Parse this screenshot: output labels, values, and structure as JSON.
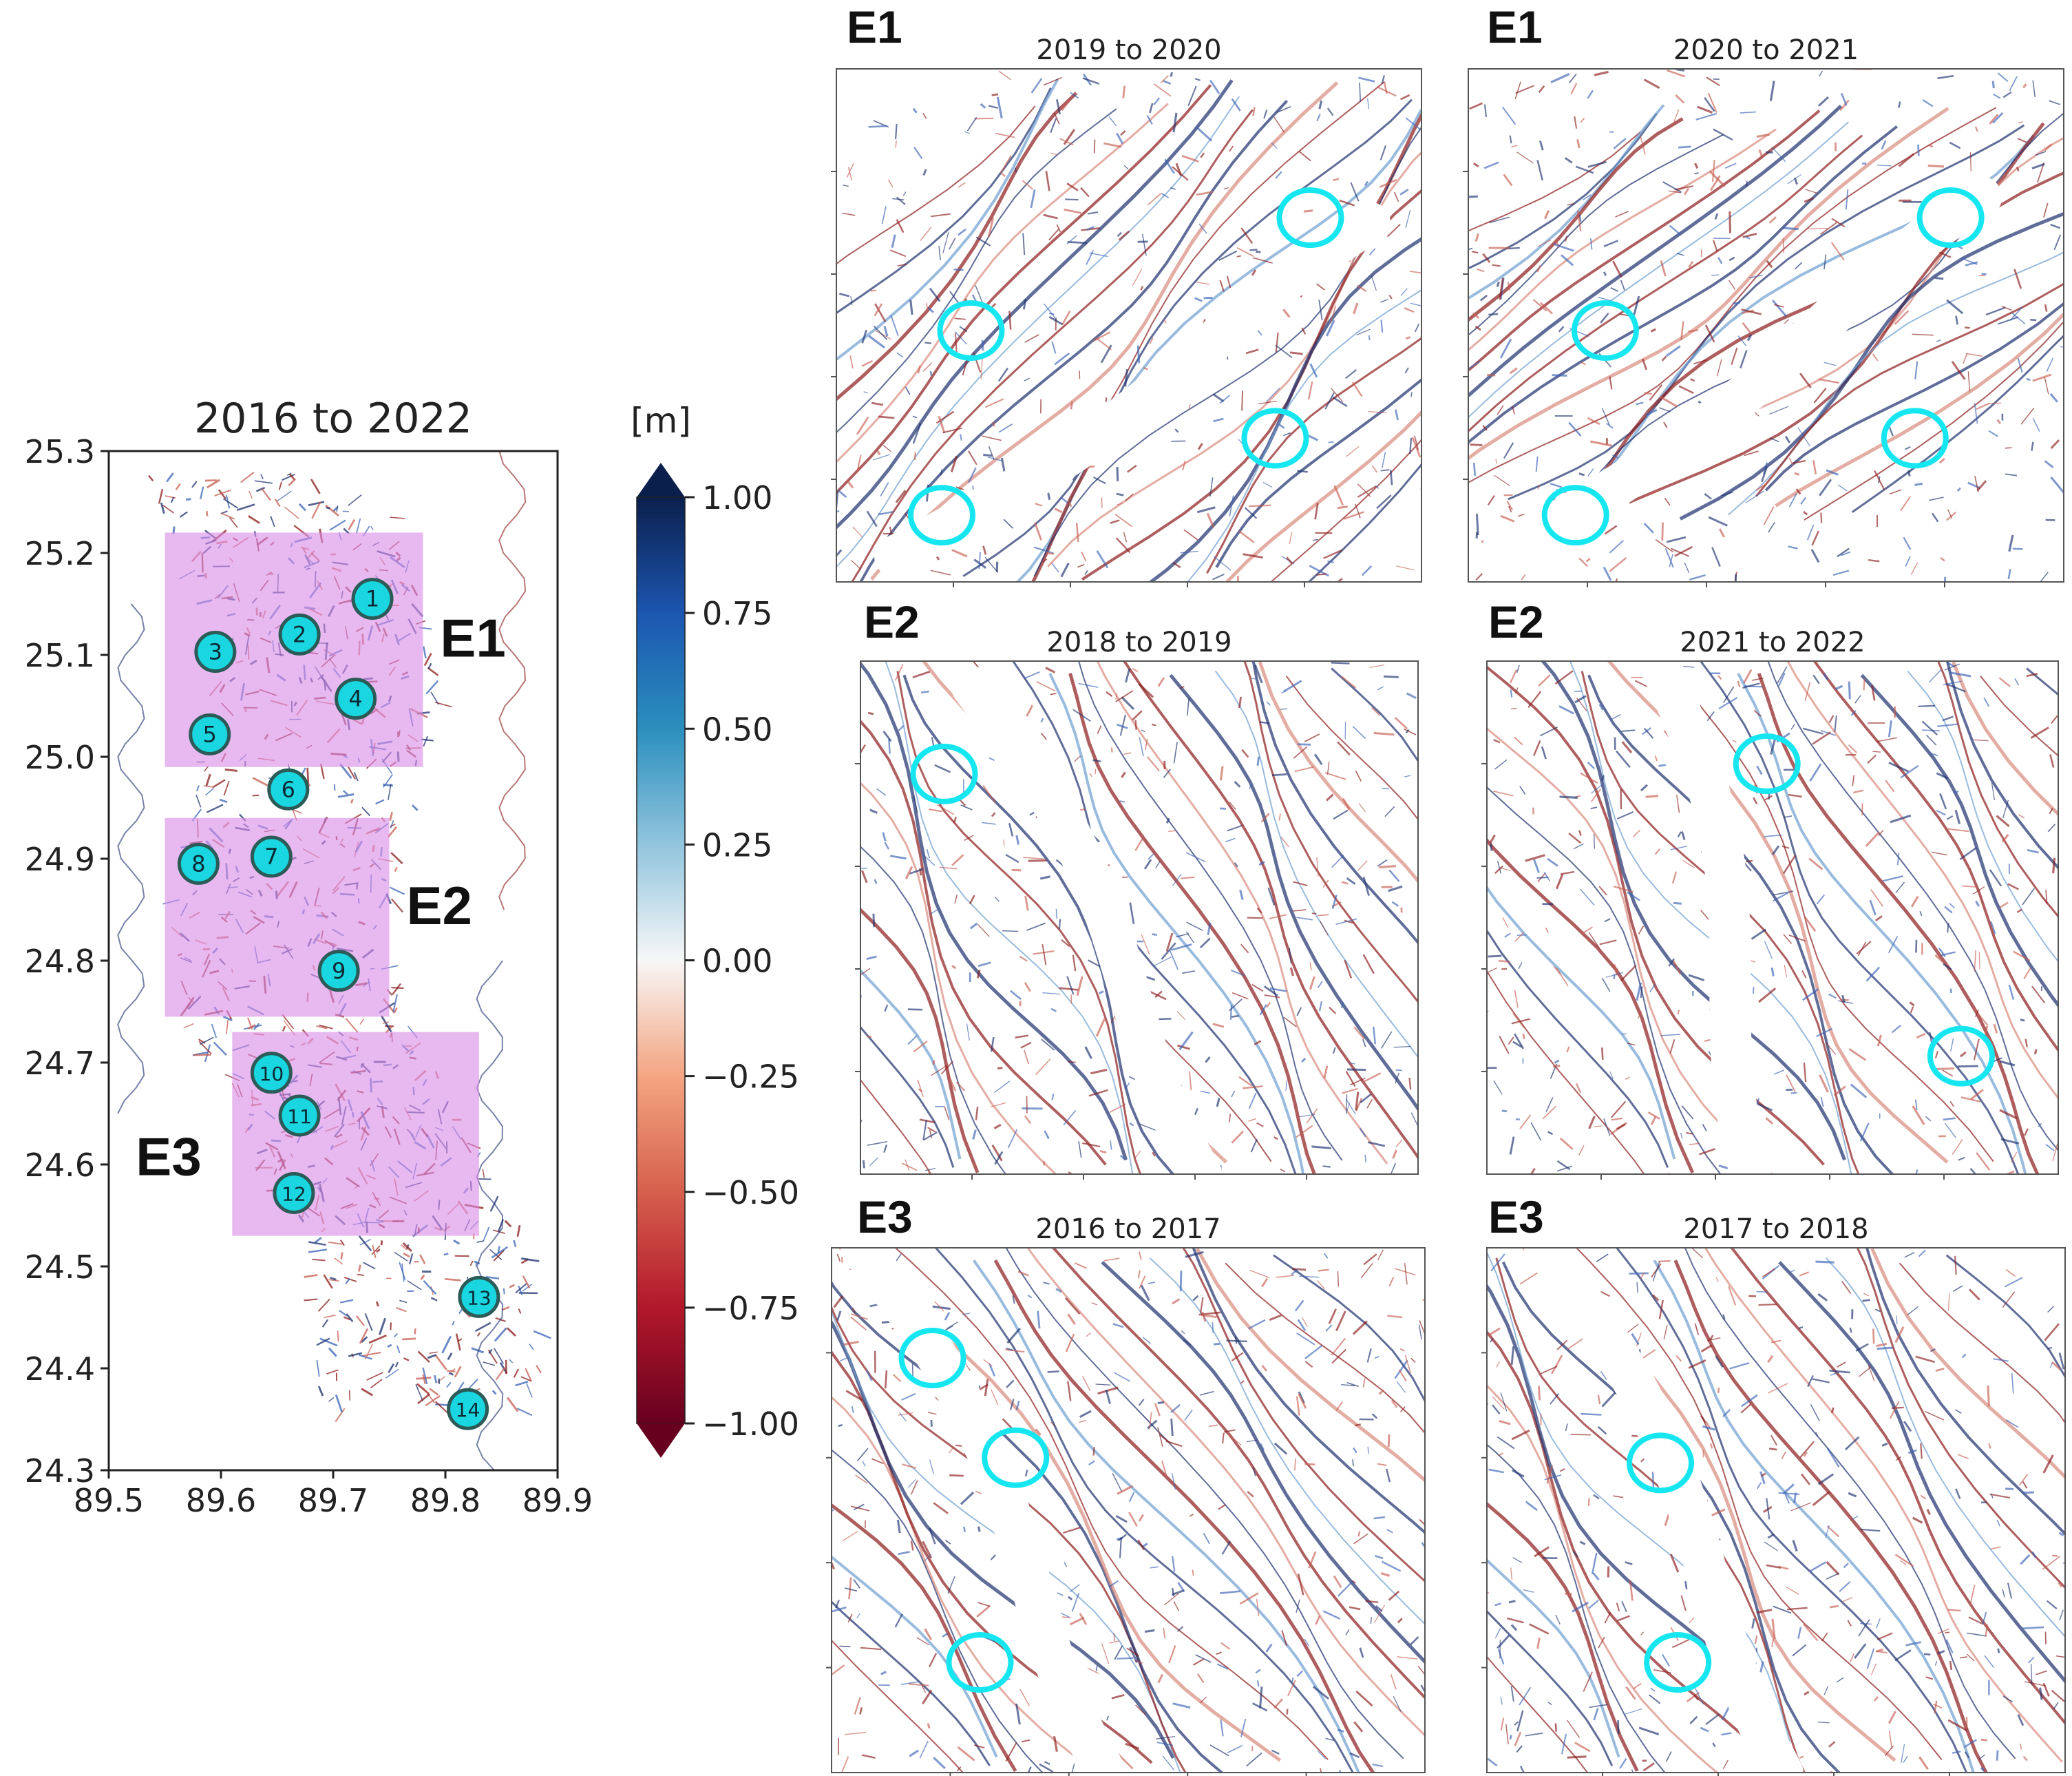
{
  "overview": {
    "title": "2016 to 2022",
    "y_ticks": [
      "25.3",
      "25.2",
      "25.1",
      "25.0",
      "24.9",
      "24.8",
      "24.7",
      "24.6",
      "24.5",
      "24.4",
      "24.3"
    ],
    "x_ticks": [
      "89.5",
      "89.6",
      "89.7",
      "89.8",
      "89.9"
    ],
    "extent": {
      "lon": [
        89.5,
        89.9
      ],
      "lat": [
        24.3,
        25.3
      ]
    },
    "regions": [
      {
        "label": "E1",
        "lon": [
          89.55,
          89.78
        ],
        "lat": [
          24.99,
          25.22
        ]
      },
      {
        "label": "E2",
        "lon": [
          89.55,
          89.75
        ],
        "lat": [
          24.745,
          24.94
        ]
      },
      {
        "label": "E3",
        "lon": [
          89.61,
          89.83
        ],
        "lat": [
          24.53,
          24.73
        ]
      }
    ],
    "region_color": "#d88be6",
    "markers": [
      {
        "n": "1",
        "lon": 89.735,
        "lat": 25.155
      },
      {
        "n": "2",
        "lon": 89.67,
        "lat": 25.12
      },
      {
        "n": "3",
        "lon": 89.595,
        "lat": 25.103
      },
      {
        "n": "4",
        "lon": 89.72,
        "lat": 25.057
      },
      {
        "n": "5",
        "lon": 89.59,
        "lat": 25.022
      },
      {
        "n": "6",
        "lon": 89.66,
        "lat": 24.968
      },
      {
        "n": "7",
        "lon": 89.645,
        "lat": 24.902
      },
      {
        "n": "8",
        "lon": 89.58,
        "lat": 24.895
      },
      {
        "n": "9",
        "lon": 89.705,
        "lat": 24.79
      },
      {
        "n": "10",
        "lon": 89.645,
        "lat": 24.69
      },
      {
        "n": "11",
        "lon": 89.67,
        "lat": 24.648
      },
      {
        "n": "12",
        "lon": 89.665,
        "lat": 24.572
      },
      {
        "n": "13",
        "lon": 89.83,
        "lat": 24.47
      },
      {
        "n": "14",
        "lon": 89.82,
        "lat": 24.36
      }
    ],
    "marker_color": "#19d6e0"
  },
  "colorbar": {
    "unit": "[m]",
    "ticks": [
      "1.00",
      "0.75",
      "0.50",
      "0.25",
      "0.00",
      "−0.25",
      "−0.50",
      "−0.75",
      "−1.00"
    ],
    "range": [
      -1.0,
      1.0
    ],
    "colors": [
      "#67001f",
      "#b2182b",
      "#d6604d",
      "#f4a582",
      "#f7f7f7",
      "#92c5de",
      "#2a8fbd",
      "#1c56b0",
      "#0b1f4d"
    ],
    "extend": "both"
  },
  "panels": [
    {
      "region": "E1",
      "title": "2019 to 2020",
      "circles": [
        [
          0.81,
          0.29
        ],
        [
          0.23,
          0.51
        ],
        [
          0.75,
          0.72
        ],
        [
          0.18,
          0.87
        ]
      ]
    },
    {
      "region": "E1",
      "title": "2020 to 2021",
      "circles": [
        [
          0.81,
          0.29
        ],
        [
          0.23,
          0.51
        ],
        [
          0.75,
          0.72
        ],
        [
          0.18,
          0.87
        ]
      ]
    },
    {
      "region": "E2",
      "title": "2018 to 2019",
      "circles": [
        [
          0.15,
          0.22
        ]
      ]
    },
    {
      "region": "E2",
      "title": "2021 to 2022",
      "circles": [
        [
          0.49,
          0.2
        ],
        [
          0.83,
          0.77
        ]
      ]
    },
    {
      "region": "E3",
      "title": "2016 to 2017",
      "circles": [
        [
          0.17,
          0.21
        ],
        [
          0.31,
          0.4
        ],
        [
          0.25,
          0.79
        ]
      ]
    },
    {
      "region": "E3",
      "title": "2017 to 2018",
      "circles": [
        [
          0.3,
          0.41
        ],
        [
          0.33,
          0.79
        ]
      ]
    }
  ],
  "circle_color": "#16e6f0",
  "deposit_color": "#1c2f6e",
  "erosion_color": "#8b1a1a"
}
